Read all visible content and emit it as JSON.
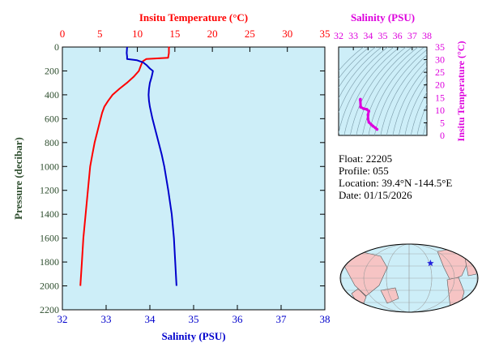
{
  "colors": {
    "temperature": "#ff0000",
    "salinity": "#0000cc",
    "pressure_axis": "#2e4e2e",
    "ts_axis": "#dd00dd",
    "plot_bg": "#cdeef8",
    "land": "#f6c4c4",
    "ocean": "#cdeef8",
    "float_marker": "#2222dd"
  },
  "info": {
    "float": "Float:  22205",
    "profile": "Profile:  055",
    "location": "Location:  39.4°N  -144.5°E",
    "date": "Date:  01/15/2026"
  },
  "float_location": {
    "lat": 39.4,
    "lon": -144.5
  },
  "chart_data": [
    {
      "type": "line",
      "axes": {
        "temperature": {
          "title": "Insitu Temperature (°C)",
          "range": [
            0,
            35
          ],
          "ticks": [
            0,
            5,
            10,
            15,
            20,
            25,
            30,
            35
          ]
        },
        "salinity": {
          "title": "Salinity (PSU)",
          "range": [
            32,
            38
          ],
          "ticks": [
            32,
            33,
            34,
            35,
            36,
            37,
            38
          ]
        },
        "pressure": {
          "title": "Pressure (decibar)",
          "range": [
            0,
            2200
          ],
          "ticks": [
            0,
            200,
            400,
            600,
            800,
            1000,
            1200,
            1400,
            1600,
            1800,
            2000,
            2200
          ],
          "inverted": true
        }
      },
      "grid": false,
      "series": [
        {
          "key": "temperature",
          "pressure": [
            0,
            5,
            50,
            90,
            100,
            120,
            150,
            200,
            250,
            300,
            350,
            400,
            450,
            500,
            550,
            600,
            700,
            800,
            900,
            1000,
            1200,
            1400,
            1600,
            1800,
            2000
          ],
          "values": [
            14.3,
            14.2,
            14.2,
            14.1,
            11.2,
            10.7,
            10.5,
            10.2,
            9.5,
            8.6,
            7.6,
            6.7,
            6.1,
            5.6,
            5.3,
            5.1,
            4.7,
            4.3,
            4.0,
            3.7,
            3.4,
            3.1,
            2.8,
            2.6,
            2.4
          ]
        },
        {
          "key": "salinity",
          "pressure": [
            0,
            50,
            80,
            100,
            110,
            130,
            150,
            180,
            200,
            250,
            300,
            350,
            400,
            450,
            500,
            600,
            700,
            800,
            900,
            1000,
            1200,
            1400,
            1600,
            1800,
            2000
          ],
          "values": [
            33.48,
            33.47,
            33.48,
            33.48,
            33.7,
            33.85,
            33.92,
            34.0,
            34.07,
            34.04,
            34.0,
            33.98,
            33.97,
            33.98,
            34.0,
            34.06,
            34.13,
            34.2,
            34.27,
            34.33,
            34.42,
            34.5,
            34.55,
            34.58,
            34.61
          ]
        }
      ]
    },
    {
      "type": "scatter",
      "axes": {
        "salinity": {
          "title": "Salinity (PSU)",
          "range": [
            32,
            38
          ],
          "ticks": [
            32,
            33,
            34,
            35,
            36,
            37,
            38
          ]
        },
        "temperature": {
          "title": "Insitu Temperature (°C)",
          "range": [
            0,
            35
          ],
          "ticks": [
            0,
            5,
            10,
            15,
            20,
            25,
            30,
            35
          ]
        }
      },
      "points": {
        "salinity": [
          33.48,
          33.47,
          33.5,
          33.7,
          33.92,
          34.05,
          34.0,
          34.0,
          34.06,
          34.2,
          34.33,
          34.5,
          34.61
        ],
        "temperature": [
          14.3,
          14.1,
          11.2,
          10.6,
          10.3,
          9.6,
          8.2,
          6.5,
          5.2,
          4.4,
          3.7,
          3.0,
          2.4
        ]
      }
    }
  ]
}
